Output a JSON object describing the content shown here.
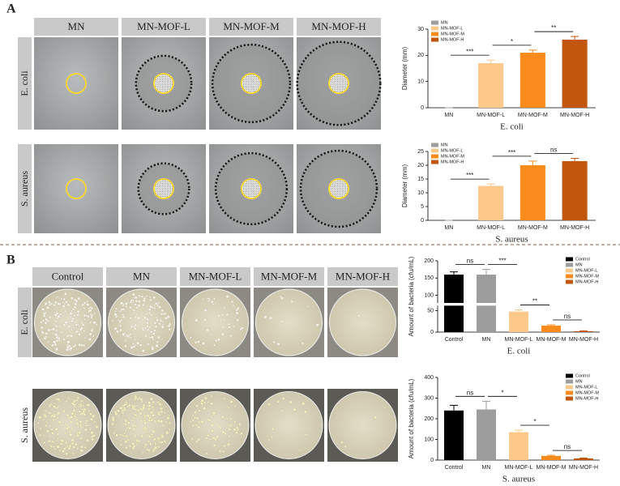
{
  "figure": {
    "panels": [
      {
        "label": "A",
        "columns": [
          "MN",
          "MN-MOF-L",
          "MN-MOF-M",
          "MN-MOF-H"
        ],
        "rows": [
          "E. coli",
          "S. aureus"
        ]
      },
      {
        "label": "B",
        "columns": [
          "Control",
          "MN",
          "MN-MOF-L",
          "MN-MOF-M",
          "MN-MOF-H"
        ],
        "rows": [
          "E. coli",
          "S. aureus"
        ]
      }
    ]
  },
  "chart_data": [
    {
      "type": "bar",
      "ylabel": "Diameter (mm)",
      "xlabel": "E. coli",
      "categories": [
        "MN",
        "MN-MOF-L",
        "MN-MOF-M",
        "MN-MOF-H"
      ],
      "values": [
        0,
        17,
        21,
        26
      ],
      "errors": [
        0,
        1.2,
        1,
        1.2
      ],
      "colors": [
        "#9d9d9d",
        "#fdc98a",
        "#f98b1c",
        "#c2560c"
      ],
      "comparisons": [
        "***",
        "*",
        "**"
      ],
      "ylim": [
        0,
        30
      ],
      "yticks": [
        0,
        10,
        20,
        30
      ],
      "legend": "upper left"
    },
    {
      "type": "bar",
      "ylabel": "Diameter (mm)",
      "xlabel": "S. aureus",
      "categories": [
        "MN",
        "MN-MOF-L",
        "MN-MOF-M",
        "MN-MOF-H"
      ],
      "values": [
        0,
        12.5,
        20,
        21.5
      ],
      "errors": [
        0,
        0.7,
        1.5,
        1
      ],
      "colors": [
        "#9d9d9d",
        "#fdc98a",
        "#f98b1c",
        "#c2560c"
      ],
      "comparisons": [
        "***",
        "***",
        "ns"
      ],
      "ylim": [
        0,
        25
      ],
      "yticks": [
        0,
        5,
        10,
        15,
        20,
        25
      ],
      "legend": "upper left"
    },
    {
      "type": "bar",
      "ylabel": "Amount of bacteria (cfu/mL)",
      "xlabel": "E. coli",
      "categories": [
        "Control",
        "MN",
        "MN-MOF-L",
        "MN-MOF-M",
        "MN-MOF-H"
      ],
      "values": [
        160,
        160,
        48,
        15,
        2
      ],
      "errors": [
        8,
        15,
        4,
        2,
        1
      ],
      "colors": [
        "#000000",
        "#9d9d9d",
        "#fdc98a",
        "#f98b1c",
        "#c2560c"
      ],
      "comparisons": [
        "ns",
        "***",
        "**",
        "ns"
      ],
      "ylim": [
        0,
        200
      ],
      "ybreak": [
        60,
        80
      ],
      "yticks": [
        0,
        50,
        100,
        150,
        200
      ],
      "legend": "upper right"
    },
    {
      "type": "bar",
      "ylabel": "Amount of bacteria (cfu/mL)",
      "xlabel": "S. aureus",
      "categories": [
        "Control",
        "MN",
        "MN-MOF-L",
        "MN-MOF-M",
        "MN-MOF-H"
      ],
      "values": [
        240,
        245,
        135,
        20,
        8
      ],
      "errors": [
        25,
        40,
        10,
        3,
        2
      ],
      "colors": [
        "#000000",
        "#9d9d9d",
        "#fdc98a",
        "#f98b1c",
        "#c2560c"
      ],
      "comparisons": [
        "ns",
        "*",
        "*",
        "ns"
      ],
      "ylim": [
        0,
        400
      ],
      "yticks": [
        0,
        100,
        200,
        300,
        400
      ],
      "legend": "upper right"
    }
  ]
}
